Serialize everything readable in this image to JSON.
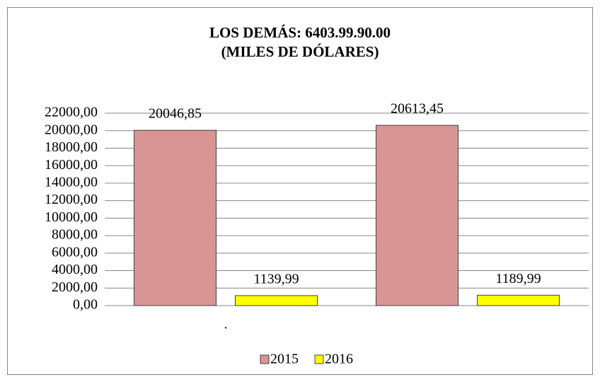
{
  "chart_data": {
    "type": "bar",
    "title": "LOS DEMÁS: 6403.99.90.00",
    "subtitle": "(MILES DE DÓLARES)",
    "categories": [
      ".",
      null
    ],
    "series": [
      {
        "name": "2015",
        "color": "#d99594",
        "values": [
          20046.85,
          20613.45
        ],
        "value_labels": [
          "20046,85",
          "20613,45"
        ]
      },
      {
        "name": "2016",
        "color": "#ffff00",
        "values": [
          1139.99,
          1189.99
        ],
        "value_labels": [
          "1139,99",
          "1189,99"
        ]
      }
    ],
    "ylim": [
      0,
      22000
    ],
    "yticks": [
      {
        "value": 0,
        "label": "0,00"
      },
      {
        "value": 2000,
        "label": "2000,00"
      },
      {
        "value": 4000,
        "label": "4000,00"
      },
      {
        "value": 6000,
        "label": "6000,00"
      },
      {
        "value": 8000,
        "label": "8000,00"
      },
      {
        "value": 10000,
        "label": "10000,00"
      },
      {
        "value": 12000,
        "label": "12000,00"
      },
      {
        "value": 14000,
        "label": "14000,00"
      },
      {
        "value": 16000,
        "label": "16000,00"
      },
      {
        "value": 18000,
        "label": "18000,00"
      },
      {
        "value": 20000,
        "label": "20000,00"
      },
      {
        "value": 22000,
        "label": "22000,00"
      }
    ],
    "grid": true,
    "legend": "bottom"
  }
}
